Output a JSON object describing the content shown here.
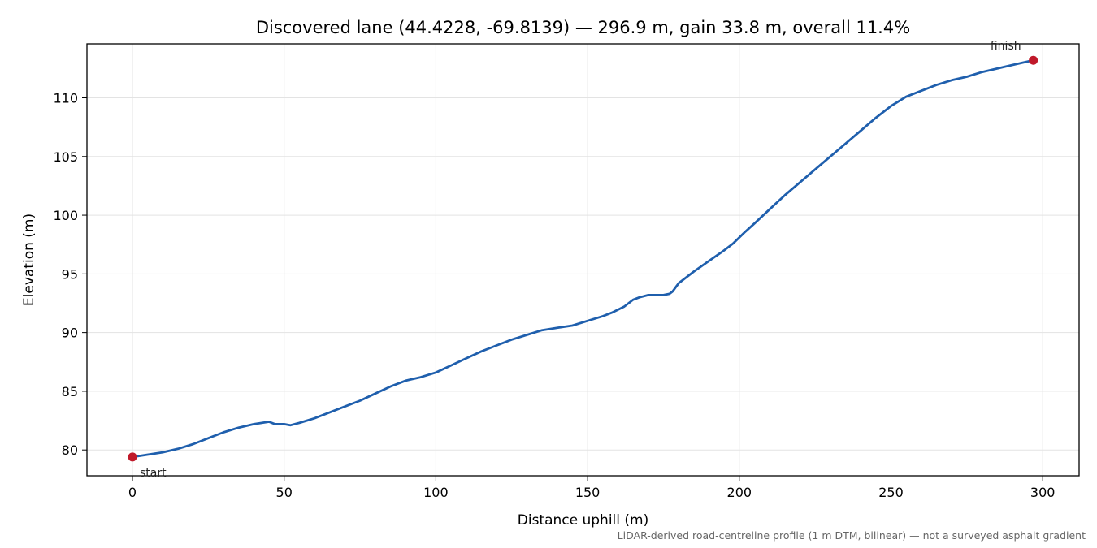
{
  "chart_data": {
    "type": "line",
    "title": "Discovered lane (44.4228, -69.8139) — 296.9 m, gain 33.8 m, overall 11.4%",
    "xlabel": "Distance uphill (m)",
    "ylabel": "Elevation (m)",
    "xlim": [
      -15,
      312
    ],
    "ylim": [
      77.8,
      114.6
    ],
    "xticks": [
      0,
      50,
      100,
      150,
      200,
      250,
      300
    ],
    "yticks": [
      80,
      85,
      90,
      95,
      100,
      105,
      110
    ],
    "grid": true,
    "series": [
      {
        "color": "#1f5fad",
        "x": [
          0,
          5,
          10,
          15,
          20,
          25,
          30,
          35,
          40,
          45,
          47,
          48,
          50,
          52,
          55,
          60,
          65,
          70,
          75,
          80,
          85,
          90,
          95,
          100,
          105,
          110,
          115,
          120,
          125,
          130,
          135,
          140,
          145,
          150,
          155,
          158,
          162,
          165,
          167,
          170,
          172,
          175,
          177,
          178,
          180,
          182,
          185,
          190,
          195,
          198,
          202,
          205,
          210,
          215,
          220,
          225,
          230,
          235,
          240,
          245,
          250,
          255,
          260,
          265,
          270,
          275,
          280,
          285,
          290,
          296.9
        ],
        "y": [
          79.4,
          79.6,
          79.8,
          80.1,
          80.5,
          81.0,
          81.5,
          81.9,
          82.2,
          82.4,
          82.2,
          82.2,
          82.2,
          82.1,
          82.3,
          82.7,
          83.2,
          83.7,
          84.2,
          84.8,
          85.4,
          85.9,
          86.2,
          86.6,
          87.2,
          87.8,
          88.4,
          88.9,
          89.4,
          89.8,
          90.2,
          90.4,
          90.6,
          91.0,
          91.4,
          91.7,
          92.2,
          92.8,
          93.0,
          93.2,
          93.2,
          93.2,
          93.3,
          93.5,
          94.2,
          94.6,
          95.2,
          96.1,
          97.0,
          97.6,
          98.6,
          99.3,
          100.5,
          101.7,
          102.8,
          103.9,
          105.0,
          106.1,
          107.2,
          108.3,
          109.3,
          110.1,
          110.6,
          111.1,
          111.5,
          111.8,
          112.2,
          112.5,
          112.8,
          113.2
        ]
      }
    ],
    "markers": [
      {
        "x": 0,
        "y": 79.4,
        "label": "start",
        "color": "#c0192a"
      },
      {
        "x": 296.9,
        "y": 113.2,
        "label": "finish",
        "color": "#c0192a"
      }
    ],
    "footnote": "LiDAR-derived road-centreline profile (1 m DTM, bilinear) — not a surveyed asphalt gradient"
  }
}
